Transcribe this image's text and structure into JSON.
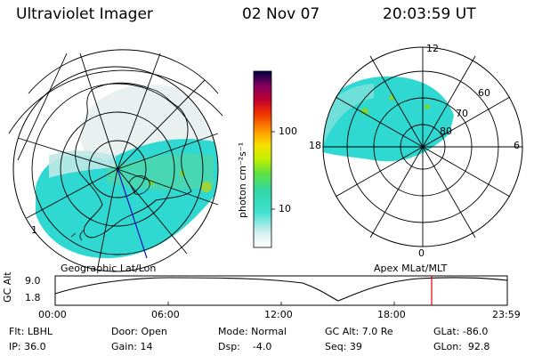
{
  "header": {
    "title": "Ultraviolet Imager",
    "date": "02 Nov 07",
    "time": "20:03:59 UT"
  },
  "left_panel": {
    "caption": "Geographic Lat/Lon",
    "edge_label": "1"
  },
  "right_panel": {
    "caption": "Apex MLat/MLT",
    "mlt_labels": [
      "12",
      "18",
      "6",
      "0"
    ],
    "lat_labels": [
      "60",
      "70",
      "80"
    ]
  },
  "colorbar": {
    "unit_label": "photon cm⁻²s⁻¹",
    "tick_labels": [
      "100",
      "10"
    ],
    "scale": "log"
  },
  "altitude_plot": {
    "ylabel": "GC Alt",
    "ytick_labels": [
      "9.0",
      "1.8"
    ],
    "xtick_labels": [
      "00:00",
      "06:00",
      "12:00",
      "18:00",
      "23:59"
    ],
    "current_time_marker_color": "#e00000"
  },
  "status": {
    "row1": {
      "flt": "Flt: LBHL",
      "door": "Door: Open",
      "mode": "Mode: Normal",
      "gc_alt": "GC Alt: 7.0 Re",
      "glat": "GLat: -86.0"
    },
    "row2": {
      "ip": "IP: 36.0",
      "gain": "Gain: 14",
      "dsp": "Dsp:    -4.0",
      "seq": "Seq: 39",
      "glon": "GLon:  92.8"
    }
  },
  "colors": {
    "aurora_cyan": "#2fd8d0",
    "aurora_green": "#7cd63a",
    "sparse_gray": "#c8d8d8",
    "coastline": "#000000",
    "track": "#1010c0"
  }
}
